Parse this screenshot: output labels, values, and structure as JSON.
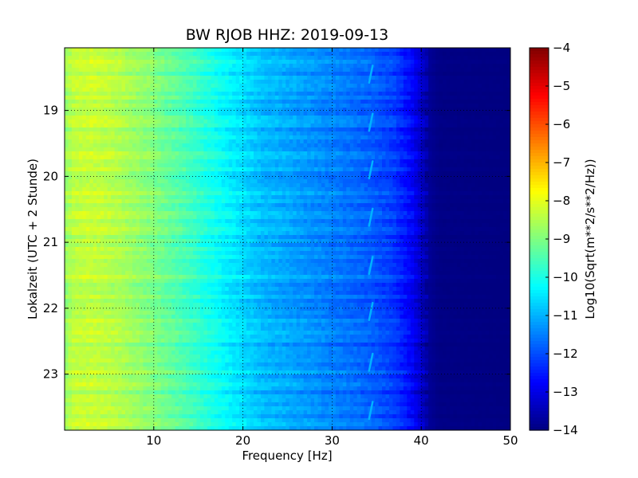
{
  "chart_data": {
    "type": "heatmap",
    "title": "BW RJOB HHZ: 2019-09-13",
    "xlabel": "Frequency [Hz]",
    "ylabel": "Lokalzeit (UTC + 2 Stunde)",
    "colorbar_label": "Log10(Sqrt(m**2/s**2/Hz))",
    "xlim": [
      0,
      50
    ],
    "ylim": [
      23.85,
      18.05
    ],
    "y_inverted": true,
    "xticks": [
      10,
      20,
      30,
      40,
      50
    ],
    "xtick_labels": [
      "10",
      "20",
      "30",
      "40",
      "50"
    ],
    "yticks": [
      19,
      20,
      21,
      22,
      23
    ],
    "ytick_labels": [
      "19",
      "20",
      "21",
      "22",
      "23"
    ],
    "color_range": [
      -14,
      -4
    ],
    "colorbar_ticks": [
      -4,
      -5,
      -6,
      -7,
      -8,
      -9,
      -10,
      -11,
      -12,
      -13,
      -14
    ],
    "colorbar_tick_labels": [
      "−4",
      "−5",
      "−6",
      "−7",
      "−8",
      "−9",
      "−10",
      "−11",
      "−12",
      "−13",
      "−14"
    ],
    "colormap": "jet",
    "grid": true,
    "frequency_profile": {
      "frequency_hz": [
        0,
        1,
        3,
        6,
        10,
        14,
        18,
        22,
        26,
        30,
        34,
        37,
        39,
        40,
        41,
        42,
        50
      ],
      "log10_amplitude": [
        -8.8,
        -8.4,
        -8.3,
        -8.5,
        -9.0,
        -9.6,
        -10.3,
        -10.9,
        -11.2,
        -11.5,
        -11.8,
        -12.2,
        -12.8,
        -13.3,
        -13.8,
        -13.95,
        -14.0
      ]
    },
    "hourly_features": {
      "frequency_hz": 34.3,
      "times_hours": [
        18.45,
        19.18,
        19.9,
        20.62,
        21.35,
        22.05,
        22.82,
        23.55
      ],
      "log10_amplitude": -11.0
    }
  }
}
